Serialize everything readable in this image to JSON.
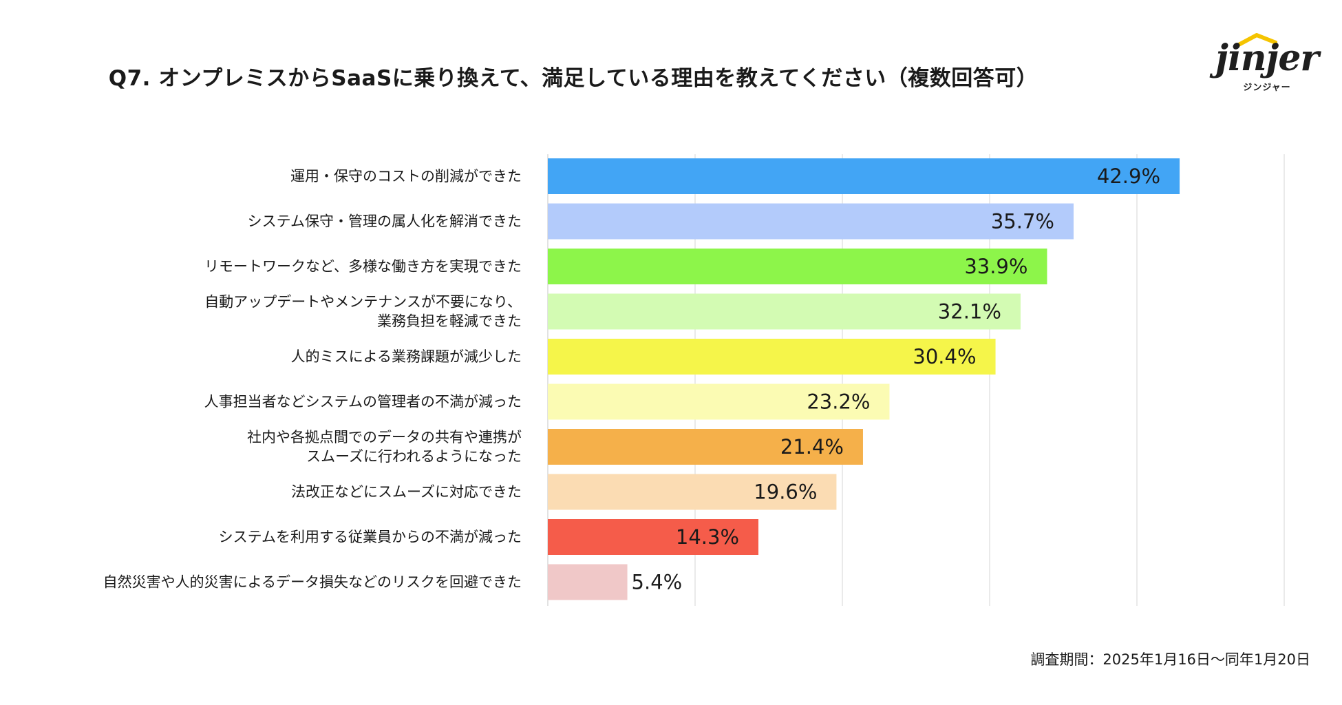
{
  "logo": {
    "text": "jinjer",
    "subtext": "ジンジャー",
    "accent": "#f5c400"
  },
  "footnote": "調査期間：2025年1月16日〜同年1月20日",
  "chart_data": {
    "type": "bar",
    "orientation": "horizontal",
    "title": "Q7. オンプレミスからSaaSに乗り換えて、満足している理由を教えてください（複数回答可）",
    "xlabel": "",
    "ylabel": "",
    "xlim": [
      0,
      50
    ],
    "grid": true,
    "categories": [
      "運用・保守のコストの削減ができた",
      "システム保守・管理の属人化を解消できた",
      "リモートワークなど、多様な働き方を実現できた",
      "自動アップデートやメンテナンスが不要になり、\n業務負担を軽減できた",
      "人的ミスによる業務課題が減少した",
      "人事担当者などシステムの管理者の不満が減った",
      "社内や各拠点間でのデータの共有や連携が\nスムーズに行われるようになった",
      "法改正などにスムーズに対応できた",
      "システムを利用する従業員からの不満が減った",
      "自然災害や人的災害によるデータ損失などのリスクを回避できた"
    ],
    "values": [
      42.9,
      35.7,
      33.9,
      32.1,
      30.4,
      23.2,
      21.4,
      19.6,
      14.3,
      5.4
    ],
    "value_labels": [
      "42.9%",
      "35.7%",
      "33.9%",
      "32.1%",
      "30.4%",
      "23.2%",
      "21.4%",
      "19.6%",
      "14.3%",
      "5.4%"
    ],
    "colors": [
      "#42a5f5",
      "#b3cbfb",
      "#8df54a",
      "#d3fbb3",
      "#f5f54a",
      "#fbfbb3",
      "#f5b04a",
      "#fbdcb3",
      "#f55c4a",
      "#f0c8c8"
    ]
  }
}
